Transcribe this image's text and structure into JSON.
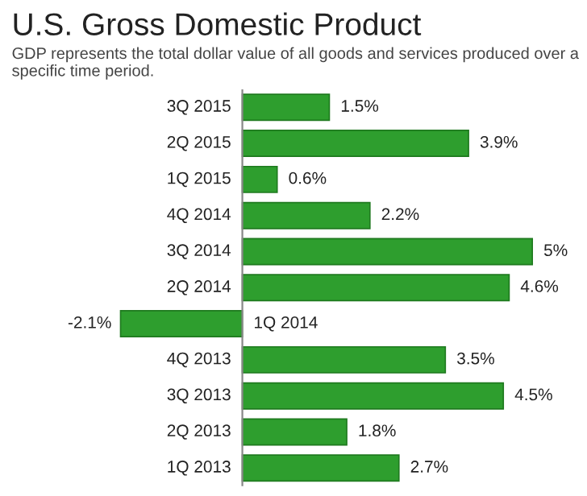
{
  "chart_data": {
    "type": "bar",
    "orientation": "horizontal",
    "title": "U.S. Gross Domestic Product",
    "subtitle": "GDP represents the total dollar value of all goods and services produced over a specific time period.",
    "categories": [
      "3Q 2015",
      "2Q 2015",
      "1Q 2015",
      "4Q 2014",
      "3Q 2014",
      "2Q 2014",
      "1Q 2014",
      "4Q 2013",
      "3Q 2013",
      "2Q 2013",
      "1Q 2013"
    ],
    "values": [
      1.5,
      3.9,
      0.6,
      2.2,
      5,
      4.6,
      -2.1,
      3.5,
      4.5,
      1.8,
      2.7
    ],
    "value_labels": [
      "1.5%",
      "3.9%",
      "0.6%",
      "2.2%",
      "5%",
      "4.6%",
      "-2.1%",
      "3.5%",
      "4.5%",
      "1.8%",
      "2.7%"
    ],
    "color": "#2e9e2e"
  }
}
